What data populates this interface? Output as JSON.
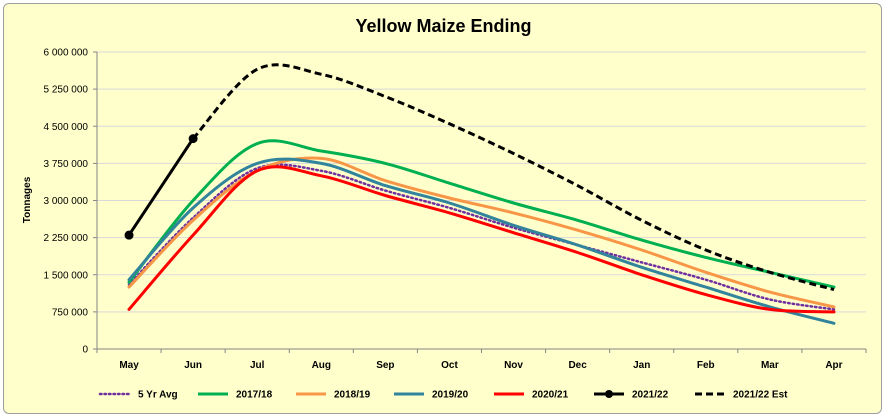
{
  "chart_data": {
    "type": "line",
    "title": "Yellow Maize Ending",
    "xlabel": "",
    "ylabel": "Tonnages",
    "categories": [
      "May",
      "Jun",
      "Jul",
      "Aug",
      "Sep",
      "Oct",
      "Nov",
      "Dec",
      "Jan",
      "Feb",
      "Mar",
      "Apr"
    ],
    "ylim": [
      0,
      6000000
    ],
    "yticks": [
      0,
      750000,
      1500000,
      2250000,
      3000000,
      3750000,
      4500000,
      5250000,
      6000000
    ],
    "ytick_labels": [
      "0",
      "750 000",
      "1 500 000",
      "2 250 000",
      "3 000 000",
      "3 750 000",
      "4 500 000",
      "5 250 000",
      "6 000 000"
    ],
    "grid": true,
    "legend_position": "bottom",
    "series": [
      {
        "name": "5 Yr Avg",
        "color": "#7030a0",
        "dash": "dotted",
        "values": [
          1300000,
          2650000,
          3650000,
          3600000,
          3200000,
          2850000,
          2450000,
          2100000,
          1750000,
          1400000,
          1000000,
          800000
        ]
      },
      {
        "name": "2017/18",
        "color": "#00b050",
        "dash": "solid",
        "values": [
          1350000,
          3000000,
          4150000,
          4000000,
          3750000,
          3350000,
          2950000,
          2600000,
          2200000,
          1850000,
          1550000,
          1250000
        ]
      },
      {
        "name": "2018/19",
        "color": "#f79646",
        "dash": "solid",
        "values": [
          1250000,
          2600000,
          3600000,
          3850000,
          3400000,
          3050000,
          2750000,
          2400000,
          2000000,
          1550000,
          1150000,
          850000
        ]
      },
      {
        "name": "2019/20",
        "color": "#31849b",
        "dash": "solid",
        "values": [
          1400000,
          2850000,
          3750000,
          3750000,
          3300000,
          2950000,
          2500000,
          2100000,
          1650000,
          1250000,
          850000,
          520000
        ]
      },
      {
        "name": "2020/21",
        "color": "#ff0000",
        "dash": "solid",
        "values": [
          800000,
          2300000,
          3600000,
          3500000,
          3100000,
          2750000,
          2350000,
          1950000,
          1500000,
          1100000,
          800000,
          750000
        ]
      },
      {
        "name": "2021/22",
        "color": "#000000",
        "dash": "solid",
        "markers": true,
        "values": [
          2300000,
          4250000,
          null,
          null,
          null,
          null,
          null,
          null,
          null,
          null,
          null,
          null
        ]
      },
      {
        "name": "2021/22 Est",
        "color": "#000000",
        "dash": "dashed",
        "values": [
          null,
          4250000,
          5650000,
          5550000,
          5100000,
          4550000,
          3950000,
          3300000,
          2600000,
          2000000,
          1550000,
          1200000
        ]
      }
    ]
  }
}
